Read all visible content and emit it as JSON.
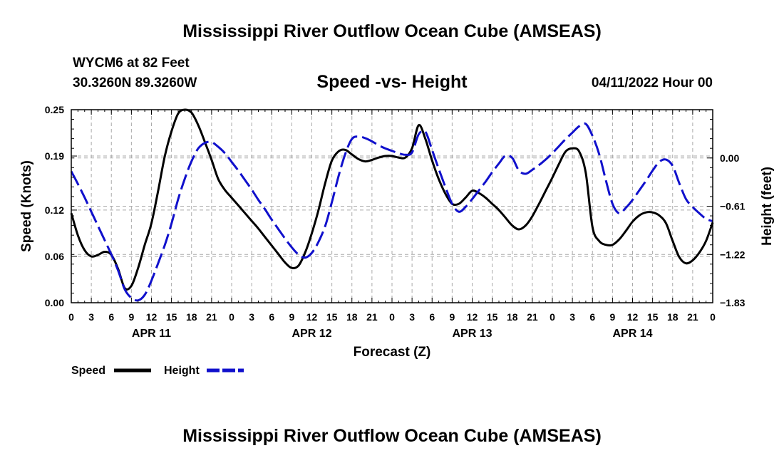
{
  "header": {
    "title": "Mississippi River Outflow Ocean Cube (AMSEAS)",
    "station": "WYCM6 at 82 Feet",
    "coords": "30.3260N  89.3260W",
    "subtitle": "Speed -vs- Height",
    "datetime": "04/11/2022 Hour 00"
  },
  "footer": {
    "title": "Mississippi River Outflow Ocean Cube (AMSEAS)"
  },
  "colors": {
    "speed": "#000000",
    "height": "#1010cc",
    "grid": "#aaaaaa"
  },
  "chart_data": {
    "type": "line",
    "title": "Speed -vs- Height",
    "xlabel": "Forecast (Z)",
    "ylabel": "Speed (Knots)",
    "y2label": "Height (feet)",
    "xlim": [
      0,
      96
    ],
    "ylim": [
      0,
      0.25
    ],
    "y2lim": [
      -1.83,
      0.61
    ],
    "x_ticks": [
      0,
      3,
      6,
      9,
      12,
      15,
      18,
      21,
      24,
      27,
      30,
      33,
      36,
      39,
      42,
      45,
      48,
      51,
      54,
      57,
      60,
      63,
      66,
      69,
      72,
      75,
      78,
      81,
      84,
      87,
      90,
      93,
      96
    ],
    "x_tick_labels": [
      "0",
      "3",
      "6",
      "9",
      "12",
      "15",
      "18",
      "21",
      "0",
      "3",
      "6",
      "9",
      "12",
      "15",
      "18",
      "21",
      "0",
      "3",
      "6",
      "9",
      "12",
      "15",
      "18",
      "21",
      "0",
      "3",
      "6",
      "9",
      "12",
      "15",
      "18",
      "21",
      "0"
    ],
    "day_labels": [
      {
        "x": 12,
        "label": "APR 11"
      },
      {
        "x": 36,
        "label": "APR 12"
      },
      {
        "x": 60,
        "label": "APR 13"
      },
      {
        "x": 84,
        "label": "APR 14"
      }
    ],
    "y_ticks": [
      0.0,
      0.06,
      0.12,
      0.19,
      0.25
    ],
    "y_tick_labels": [
      "0.00",
      "0.06",
      "0.12",
      "0.19",
      "0.25"
    ],
    "y2_ticks": [
      -1.83,
      -1.22,
      -0.61,
      0.0
    ],
    "y2_tick_labels": [
      "−1.83",
      "−1.22",
      "−0.61",
      "0.00"
    ],
    "grid": true,
    "legend": "bottom-left",
    "series": [
      {
        "name": "Speed",
        "axis": "left",
        "style": "solid",
        "x": [
          0,
          1,
          2,
          3,
          4,
          5,
          6,
          7,
          8,
          9,
          10,
          11,
          12,
          13,
          14,
          15,
          16,
          17,
          18,
          19,
          20,
          21,
          22,
          23,
          24,
          25,
          26,
          27,
          28,
          29,
          30,
          31,
          32,
          33,
          34,
          35,
          36,
          37,
          38,
          39,
          40,
          41,
          42,
          43,
          44,
          45,
          46,
          47,
          48,
          49,
          50,
          51,
          52,
          53,
          54,
          55,
          56,
          57,
          58,
          59,
          60,
          61,
          62,
          63,
          64,
          65,
          66,
          67,
          68,
          69,
          70,
          71,
          72,
          73,
          74,
          75,
          76,
          77,
          78,
          79,
          80,
          81,
          82,
          83,
          84,
          85,
          86,
          87,
          88,
          89,
          90,
          91,
          92,
          93,
          94,
          95,
          96
        ],
        "values": [
          0.116,
          0.087,
          0.068,
          0.06,
          0.062,
          0.066,
          0.062,
          0.044,
          0.019,
          0.022,
          0.045,
          0.075,
          0.103,
          0.145,
          0.19,
          0.222,
          0.245,
          0.25,
          0.246,
          0.23,
          0.208,
          0.185,
          0.16,
          0.146,
          0.136,
          0.126,
          0.116,
          0.106,
          0.096,
          0.085,
          0.074,
          0.063,
          0.052,
          0.045,
          0.048,
          0.065,
          0.09,
          0.12,
          0.155,
          0.184,
          0.196,
          0.198,
          0.192,
          0.186,
          0.183,
          0.185,
          0.188,
          0.19,
          0.19,
          0.188,
          0.188,
          0.2,
          0.23,
          0.212,
          0.184,
          0.16,
          0.141,
          0.128,
          0.128,
          0.136,
          0.145,
          0.142,
          0.136,
          0.128,
          0.12,
          0.11,
          0.1,
          0.095,
          0.1,
          0.112,
          0.128,
          0.145,
          0.162,
          0.18,
          0.196,
          0.2,
          0.196,
          0.168,
          0.098,
          0.08,
          0.075,
          0.075,
          0.082,
          0.093,
          0.105,
          0.113,
          0.117,
          0.117,
          0.113,
          0.103,
          0.08,
          0.059,
          0.051,
          0.055,
          0.065,
          0.08,
          0.104
        ]
      },
      {
        "name": "Height",
        "axis": "right",
        "style": "dashed",
        "x": [
          0,
          1,
          2,
          3,
          4,
          5,
          6,
          7,
          8,
          9,
          10,
          11,
          12,
          13,
          14,
          15,
          16,
          17,
          18,
          19,
          20,
          21,
          22,
          23,
          24,
          25,
          26,
          27,
          28,
          29,
          30,
          31,
          32,
          33,
          34,
          35,
          36,
          37,
          38,
          39,
          40,
          41,
          42,
          43,
          44,
          45,
          46,
          47,
          48,
          49,
          50,
          51,
          52,
          53,
          54,
          55,
          56,
          57,
          58,
          59,
          60,
          61,
          62,
          63,
          64,
          65,
          66,
          67,
          68,
          69,
          70,
          71,
          72,
          73,
          74,
          75,
          76,
          77,
          78,
          79,
          80,
          81,
          82,
          83,
          84,
          85,
          86,
          87,
          88,
          89,
          90,
          91,
          92,
          93,
          94,
          95,
          96
        ],
        "values": [
          -0.17,
          -0.33,
          -0.5,
          -0.68,
          -0.86,
          -1.04,
          -1.22,
          -1.42,
          -1.66,
          -1.77,
          -1.8,
          -1.73,
          -1.55,
          -1.33,
          -1.1,
          -0.83,
          -0.52,
          -0.26,
          -0.04,
          0.12,
          0.19,
          0.2,
          0.14,
          0.06,
          -0.05,
          -0.16,
          -0.28,
          -0.4,
          -0.53,
          -0.65,
          -0.78,
          -0.9,
          -1.02,
          -1.13,
          -1.22,
          -1.26,
          -1.2,
          -1.06,
          -0.86,
          -0.56,
          -0.23,
          0.05,
          0.24,
          0.27,
          0.25,
          0.21,
          0.16,
          0.12,
          0.09,
          0.06,
          0.04,
          0.07,
          0.3,
          0.33,
          0.1,
          -0.14,
          -0.37,
          -0.58,
          -0.68,
          -0.62,
          -0.52,
          -0.41,
          -0.3,
          -0.18,
          -0.07,
          0.03,
          0.0,
          -0.16,
          -0.2,
          -0.15,
          -0.09,
          -0.02,
          0.06,
          0.15,
          0.24,
          0.32,
          0.4,
          0.43,
          0.28,
          0.05,
          -0.28,
          -0.58,
          -0.7,
          -0.63,
          -0.53,
          -0.41,
          -0.29,
          -0.16,
          -0.05,
          -0.02,
          -0.1,
          -0.32,
          -0.52,
          -0.62,
          -0.7,
          -0.77,
          -0.8
        ]
      }
    ]
  }
}
